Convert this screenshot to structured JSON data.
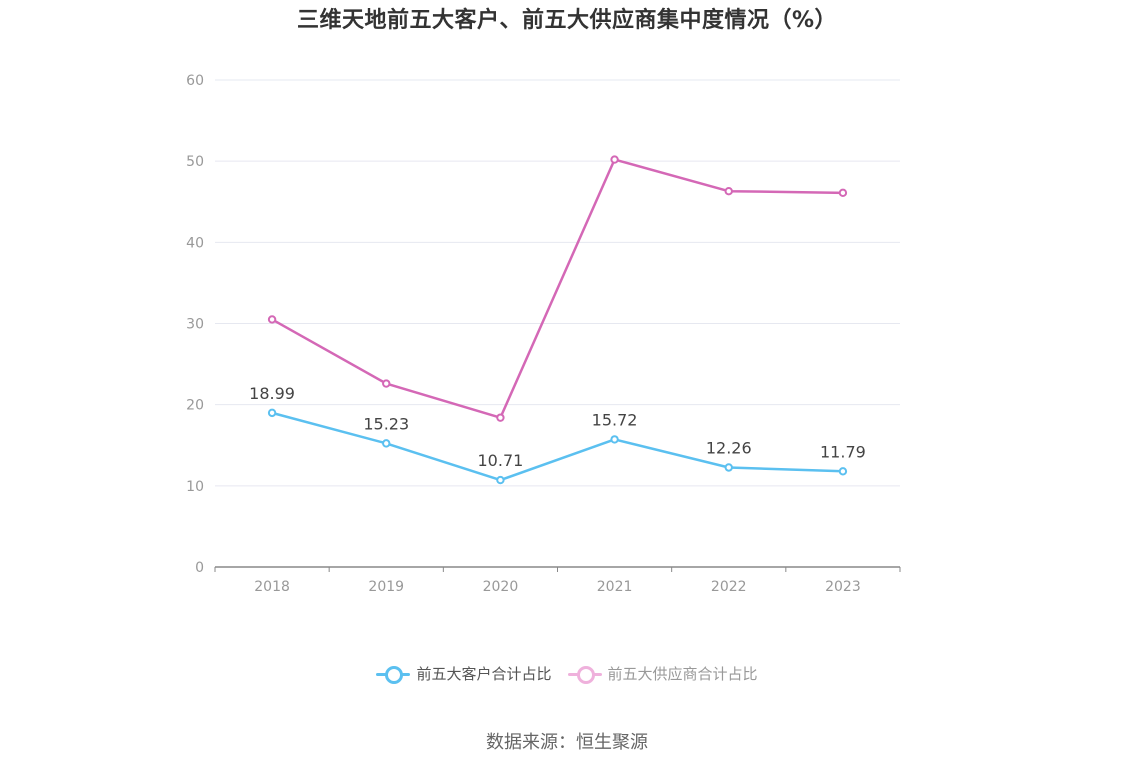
{
  "chart_data": {
    "type": "line",
    "title": "三维天地前五大客户、前五大供应商集中度情况（%）",
    "categories": [
      "2018",
      "2019",
      "2020",
      "2021",
      "2022",
      "2023"
    ],
    "series": [
      {
        "name": "前五大客户合计占比",
        "values": [
          18.99,
          15.23,
          10.71,
          15.72,
          12.26,
          11.79
        ],
        "color": "#5bc0f0",
        "show_labels": true
      },
      {
        "name": "前五大供应商合计占比",
        "values": [
          30.5,
          22.6,
          18.4,
          50.2,
          46.3,
          46.1
        ],
        "color": "#d468b6",
        "show_labels": false
      }
    ],
    "ylim": [
      0,
      60
    ],
    "yticks": [
      0,
      10,
      20,
      30,
      40,
      50,
      60
    ],
    "grid": true,
    "legend_position": "bottom"
  },
  "legend": {
    "series1_label": "前五大客户合计占比",
    "series2_label": "前五大供应商合计占比",
    "series2_dimmed": true
  },
  "source": "数据来源：恒生聚源",
  "colors": {
    "grid": "#e6e8f0",
    "axis": "#888888",
    "tick_text": "#999999",
    "label_text": "#444444",
    "series2_legend": "#efb1dc"
  }
}
